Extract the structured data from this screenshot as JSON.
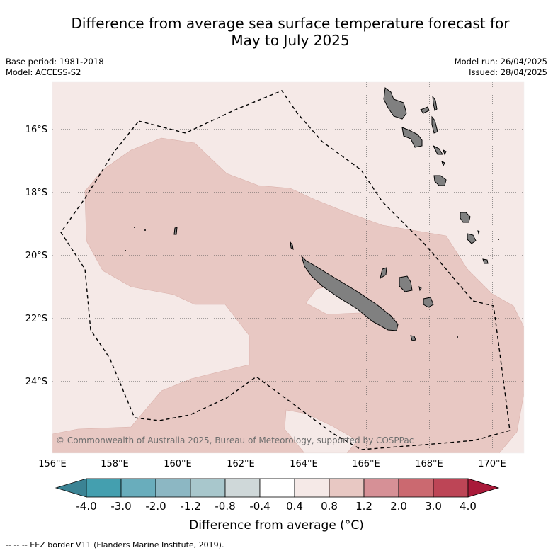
{
  "title": {
    "line1": "Difference from average sea surface temperature forecast for",
    "line2": "May to July 2025"
  },
  "meta": {
    "base_period": "Base period: 1981-2018",
    "model": "Model: ACCESS-S2",
    "model_run": "Model run: 26/04/2025",
    "issued": "Issued: 28/04/2025"
  },
  "map": {
    "lat_labels": [
      "16°S",
      "18°S",
      "20°S",
      "22°S",
      "24°S"
    ],
    "lon_labels": [
      "156°E",
      "158°E",
      "160°E",
      "162°E",
      "164°E",
      "166°E",
      "168°E",
      "170°E"
    ],
    "copyright": "© Commonwealth of Australia 2025, Bureau of Meteorology, supported by COSPPac",
    "colors": {
      "light_warm": "#f5e9e7",
      "warm": "#e8c8c3",
      "land": "#808080",
      "ocean_background": "#f5e9e7"
    }
  },
  "colorbar": {
    "labels": [
      "-4.0",
      "-3.0",
      "-2.0",
      "-1.2",
      "-0.8",
      "-0.4",
      "0.4",
      "0.8",
      "1.2",
      "2.0",
      "3.0",
      "4.0"
    ],
    "colors": [
      "#3b8394",
      "#449faf",
      "#69adbc",
      "#8cb7c3",
      "#a8c7cc",
      "#cfd8d9",
      "#ffffff",
      "#f5e9e7",
      "#e8c8c3",
      "#d69096",
      "#cb6970",
      "#bd4556",
      "#a91a3a"
    ],
    "title": "Difference from average (°C)",
    "title_text": "Difference from average (",
    "title_unit": "°C)"
  },
  "footnote": "-- -- -- EEZ border V11 (Flanders Marine Institute, 2019)."
}
